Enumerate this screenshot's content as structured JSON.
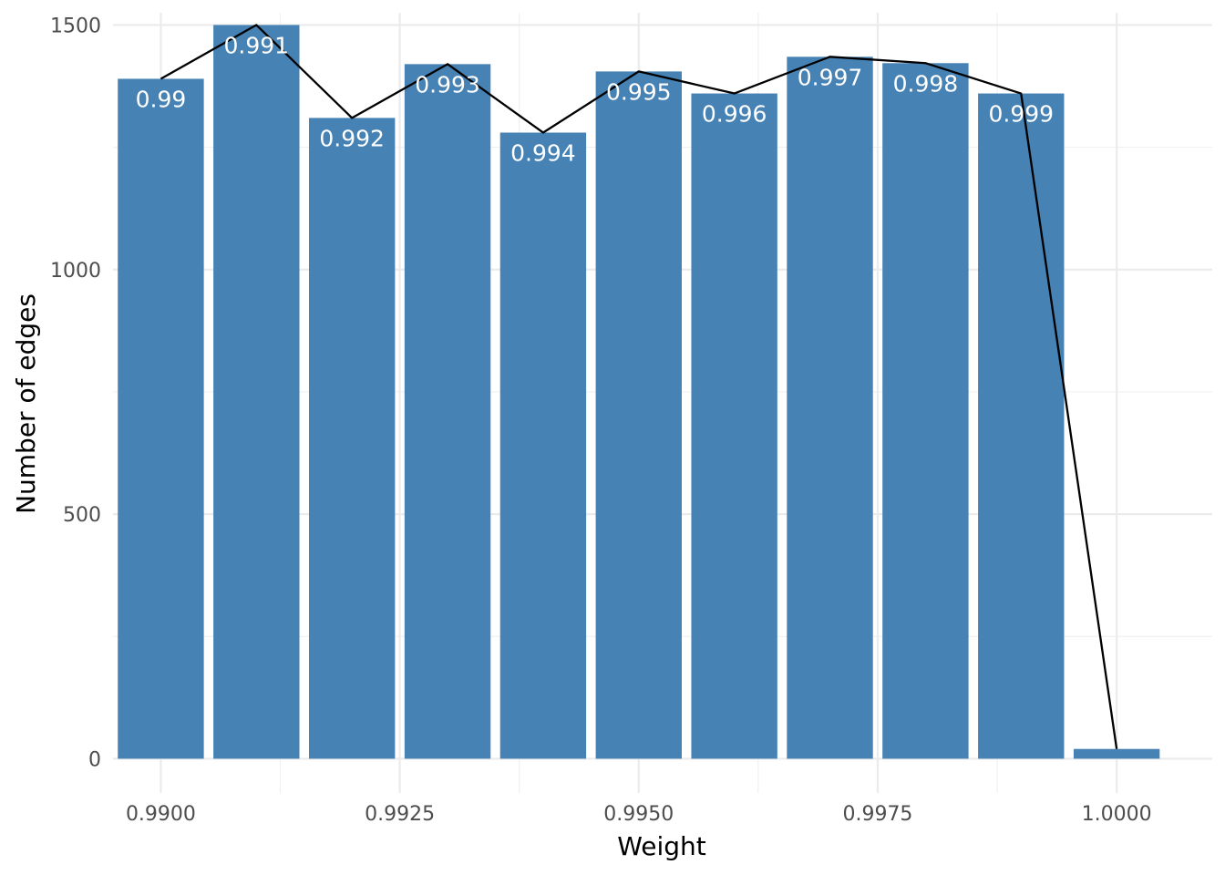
{
  "chart_data": {
    "type": "bar",
    "title": "",
    "xlabel": "Weight",
    "ylabel": "Number of edges",
    "bar_color": "#4682B4",
    "line_color": "#000000",
    "grid": true,
    "legend": "none",
    "xlim": [
      0.9895,
      1.001
    ],
    "ylim": [
      -70,
      1525
    ],
    "x_ticks": [
      0.99,
      0.9925,
      0.995,
      0.9975,
      1.0
    ],
    "x_tick_labels": [
      "0.9900",
      "0.9925",
      "0.9950",
      "0.9975",
      "1.0000"
    ],
    "y_ticks": [
      0,
      500,
      1000,
      1500
    ],
    "y_tick_labels": [
      "0",
      "500",
      "1000",
      "1500"
    ],
    "x": [
      0.99,
      0.991,
      0.992,
      0.993,
      0.994,
      0.995,
      0.996,
      0.997,
      0.998,
      0.999,
      1.0
    ],
    "values": [
      1390,
      1500,
      1310,
      1420,
      1280,
      1405,
      1360,
      1435,
      1422,
      1360,
      20
    ],
    "bar_labels": [
      "0.99",
      "0.991",
      "0.992",
      "0.993",
      "0.994",
      "0.995",
      "0.996",
      "0.997",
      "0.998",
      "0.999",
      ""
    ]
  }
}
